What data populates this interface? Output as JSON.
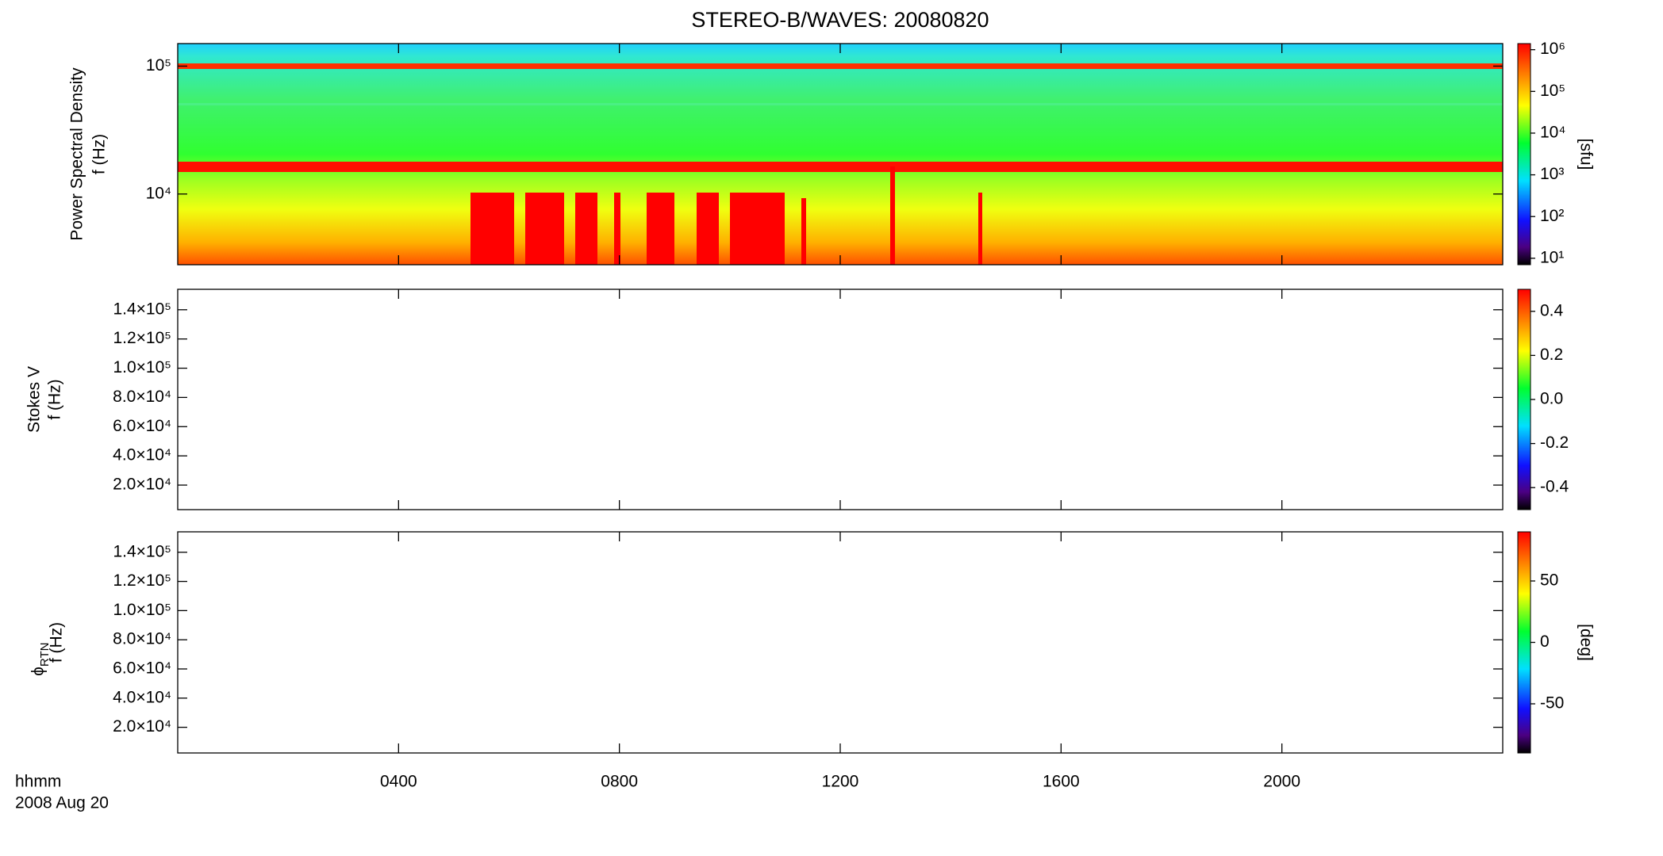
{
  "chart_data": [
    {
      "type": "spectrogram",
      "title": "STEREO-B/WAVES: 20080820",
      "ylabel": [
        "Power Spectral Density",
        "f (Hz)"
      ],
      "xlim": [
        0,
        24
      ],
      "xticks": [
        4,
        8,
        12,
        16,
        20
      ],
      "ylog": true,
      "ylim": [
        2800,
        150000
      ],
      "yticks": [
        {
          "value": 10000,
          "label": "10⁴"
        },
        {
          "value": 100000,
          "label": "10⁵"
        }
      ],
      "colorbar": {
        "log": true,
        "clim": [
          7,
          1400000
        ],
        "label": "[sfu]",
        "ticks": [
          {
            "value": 10,
            "label": "10¹"
          },
          {
            "value": 100,
            "label": "10²"
          },
          {
            "value": 1000,
            "label": "10³"
          },
          {
            "value": 10000,
            "label": "10⁴"
          },
          {
            "value": 100000,
            "label": "10⁵"
          },
          {
            "value": 1000000,
            "label": "10⁶"
          }
        ]
      }
    },
    {
      "type": "spectrogram",
      "ylabel": [
        "Stokes V",
        "f (Hz)"
      ],
      "xlim": [
        0,
        24
      ],
      "xticks": [
        4,
        8,
        12,
        16,
        20
      ],
      "ylog": false,
      "ylim": [
        3200,
        154000
      ],
      "yticks": [
        {
          "value": 20000,
          "label": "2.0×10⁴"
        },
        {
          "value": 40000,
          "label": "4.0×10⁴"
        },
        {
          "value": 60000,
          "label": "6.0×10⁴"
        },
        {
          "value": 80000,
          "label": "8.0×10⁴"
        },
        {
          "value": 100000,
          "label": "1.0×10⁵"
        },
        {
          "value": 120000,
          "label": "1.2×10⁵"
        },
        {
          "value": 140000,
          "label": "1.4×10⁵"
        }
      ],
      "colorbar": {
        "log": false,
        "clim": [
          -0.5,
          0.5
        ],
        "ticks": [
          -0.4,
          -0.2,
          {
            "value": 0,
            "label": "0.0"
          },
          0.2,
          0.4
        ]
      }
    },
    {
      "type": "spectrogram",
      "ylabel": [
        "ϕ",
        "f (Hz)"
      ],
      "ylabel_sub": "RTN",
      "xlabel": [
        "hhmm",
        "2008 Aug 20"
      ],
      "xlim": [
        0,
        24
      ],
      "xticks": [
        {
          "value": 4,
          "label": "0400"
        },
        {
          "value": 8,
          "label": "0800"
        },
        {
          "value": 12,
          "label": "1200"
        },
        {
          "value": 16,
          "label": "1600"
        },
        {
          "value": 20,
          "label": "2000"
        }
      ],
      "ylog": false,
      "ylim": [
        2400,
        154000
      ],
      "yticks": [
        {
          "value": 20000,
          "label": "2.0×10⁴"
        },
        {
          "value": 40000,
          "label": "4.0×10⁴"
        },
        {
          "value": 60000,
          "label": "6.0×10⁴"
        },
        {
          "value": 80000,
          "label": "8.0×10⁴"
        },
        {
          "value": 100000,
          "label": "1.0×10⁵"
        },
        {
          "value": 120000,
          "label": "1.2×10⁵"
        },
        {
          "value": 140000,
          "label": "1.4×10⁵"
        }
      ],
      "colorbar": {
        "log": false,
        "clim": [
          -90,
          90
        ],
        "label": "[deg]",
        "ticks": [
          -50,
          0,
          50
        ]
      }
    }
  ]
}
